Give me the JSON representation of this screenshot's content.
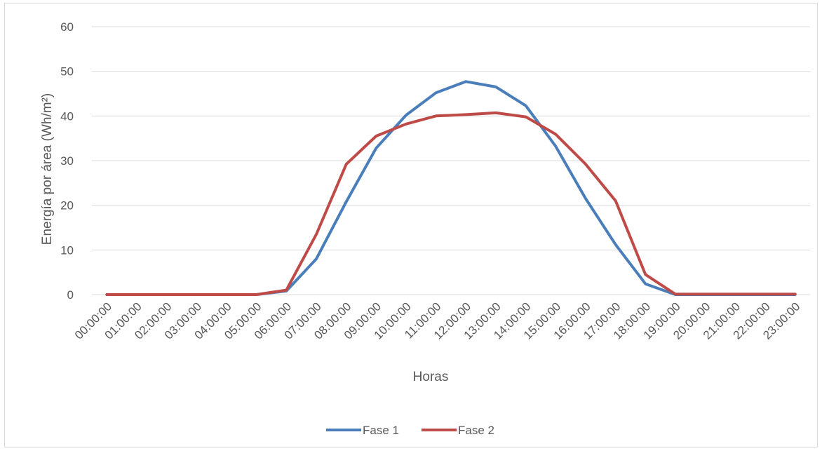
{
  "chart_data": {
    "type": "line",
    "title": "",
    "xlabel": "Horas",
    "ylabel": "Energía por área (Wh/m²)",
    "ylim": [
      0,
      60
    ],
    "yticks": [
      0,
      10,
      20,
      30,
      40,
      50,
      60
    ],
    "grid": "horizontal",
    "legend_position": "bottom",
    "categories": [
      "00:00:00",
      "01:00:00",
      "02:00:00",
      "03:00:00",
      "04:00:00",
      "05:00:00",
      "06:00:00",
      "07:00:00",
      "08:00:00",
      "09:00:00",
      "10:00:00",
      "11:00:00",
      "12:00:00",
      "13:00:00",
      "14:00:00",
      "15:00:00",
      "16:00:00",
      "17:00:00",
      "18:00:00",
      "19:00:00",
      "20:00:00",
      "21:00:00",
      "22:00:00",
      "23:00:00"
    ],
    "series": [
      {
        "name": "Fase 1",
        "color": "#4a7ebb",
        "values": [
          0,
          0,
          0,
          0,
          0,
          0,
          0.8,
          8,
          20.8,
          32.8,
          40.2,
          45.2,
          47.7,
          46.5,
          42.3,
          33.2,
          21.5,
          11.2,
          2.4,
          0,
          0,
          0,
          0,
          0
        ]
      },
      {
        "name": "Fase 2",
        "color": "#be4b48",
        "values": [
          0,
          0,
          0,
          0,
          0,
          0,
          1,
          13.5,
          29.2,
          35.5,
          38.2,
          40,
          40.3,
          40.7,
          39.8,
          35.9,
          29.2,
          21,
          4.5,
          0.1,
          0.1,
          0.1,
          0.1,
          0.1
        ]
      }
    ]
  }
}
